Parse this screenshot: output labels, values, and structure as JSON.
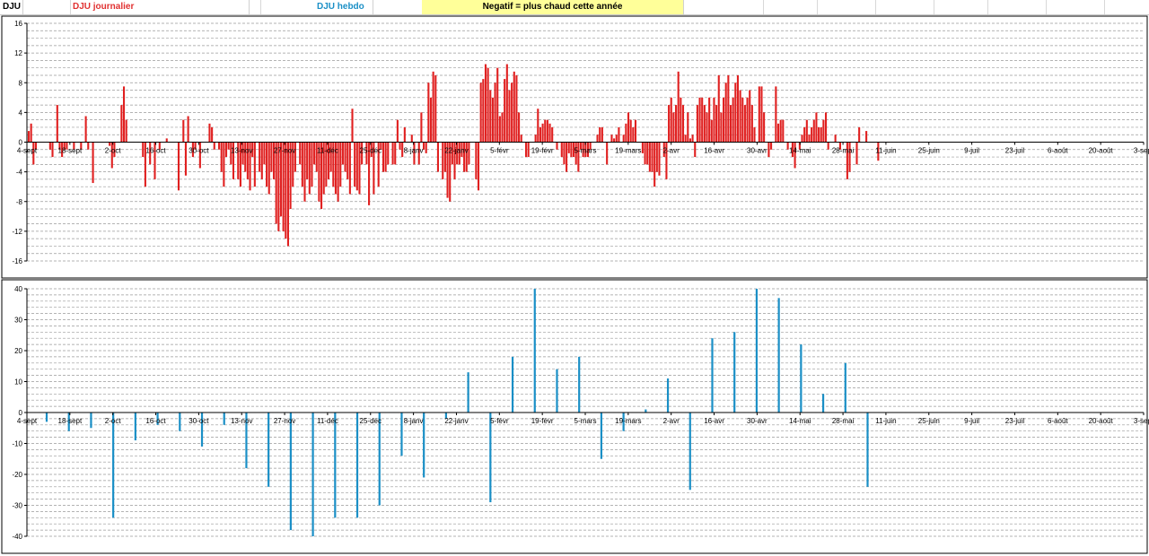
{
  "header": {
    "dju_label": "DJU",
    "daily_label": "DJU journalier",
    "weekly_label": "DJU hebdo",
    "note": "Negatif = plus chaud cette année"
  },
  "colors": {
    "daily": "#e02020",
    "weekly": "#1a8fc6"
  },
  "x_ticks": [
    "4-sept",
    "18-sept",
    "2-oct",
    "16-oct",
    "30-oct",
    "13-nov",
    "27-nov",
    "11-déc",
    "25-déc",
    "8-janv",
    "22-janv",
    "5-févr",
    "19-févr",
    "5-mars",
    "19-mars",
    "2-avr",
    "16-avr",
    "30-avr",
    "14-mai",
    "28-mai",
    "11-juin",
    "25-juin",
    "9-juil",
    "23-juil",
    "6-août",
    "20-août",
    "3-sept"
  ],
  "chart_data": [
    {
      "type": "bar",
      "title": "DJU journalier",
      "ylim": [
        -16,
        16
      ],
      "yticks": [
        16,
        12,
        8,
        4,
        0,
        -4,
        -8,
        -12,
        -16
      ],
      "grid": true,
      "x_start": "4-sept",
      "values": [
        1.5,
        2.5,
        -3,
        -1,
        0,
        0,
        0,
        0,
        0,
        -1,
        -2,
        0,
        5,
        -1,
        -2,
        -1,
        -1,
        0,
        0,
        -1,
        0,
        0,
        -1,
        0,
        3.5,
        -1,
        0,
        -5.5,
        0,
        0,
        0,
        0,
        0,
        0,
        -0.5,
        -3.5,
        -2,
        0,
        0,
        5,
        7.5,
        3,
        0,
        0,
        0,
        0,
        0,
        0,
        -2,
        -6,
        0,
        -3,
        0,
        -5,
        0,
        -1,
        0,
        0,
        0.5,
        0,
        0,
        0,
        0,
        -6.5,
        0,
        3,
        -4.5,
        3.5,
        0,
        -2,
        -1,
        0,
        -3.5,
        0,
        0,
        0,
        2.5,
        2,
        -1,
        0,
        -1,
        -4,
        -6,
        -2,
        -1,
        -3,
        -5,
        0,
        -5,
        -6,
        -3,
        -4,
        -5,
        -6.5,
        -2,
        -6,
        0,
        -4,
        -5,
        -3,
        -6,
        -7,
        -4,
        -5,
        -11,
        -12,
        -10,
        -12,
        -13,
        -14,
        -9,
        -6,
        -4,
        0,
        -3,
        -6,
        -8,
        -5,
        -7,
        -6,
        -3,
        -4,
        -8,
        -9,
        -7,
        -6,
        -5,
        -4,
        -6,
        -7,
        -8,
        -6,
        -3,
        -4,
        -5,
        -7,
        4.5,
        -6,
        -6.5,
        -7,
        -3,
        0,
        -3,
        -8.5,
        -2,
        -7,
        0,
        -6,
        -1,
        -4,
        -4,
        -3,
        0,
        -3,
        -3,
        3,
        -1,
        -2,
        2,
        0,
        0,
        1,
        -3,
        0,
        -3,
        4,
        -1,
        -1.5,
        8,
        6,
        9.5,
        9,
        -4,
        0,
        -5,
        -4,
        -7.5,
        -8,
        -3,
        -5,
        -3,
        -3,
        -2,
        -4,
        -4,
        -3,
        0,
        0,
        -5,
        -6.5,
        8,
        8.5,
        10.5,
        10,
        7,
        6,
        8,
        10,
        3.5,
        4,
        8.5,
        10.5,
        7,
        8,
        9.5,
        9,
        4,
        1,
        0,
        -2,
        -2,
        0,
        0,
        1,
        4.5,
        2,
        2.5,
        3,
        3,
        2.5,
        2,
        0,
        -1,
        0,
        -2,
        -3,
        -4,
        -1.5,
        -2,
        -2,
        -3,
        -4,
        -1,
        -2,
        -2,
        -2,
        -1,
        0,
        0,
        1,
        2,
        2,
        0,
        -3,
        0,
        1,
        0.5,
        1,
        2,
        0,
        1,
        2.5,
        4,
        3,
        2,
        3,
        0,
        0,
        -1.5,
        -3,
        -3,
        -4,
        -4,
        -6,
        -4,
        -4.5,
        0,
        -2,
        -5,
        5,
        6,
        4,
        5,
        9.5,
        6,
        5,
        1,
        4,
        0.5,
        1,
        -2,
        5,
        6,
        6,
        5,
        4,
        6,
        3,
        6,
        5,
        9,
        4,
        6,
        8,
        9,
        5,
        6,
        8,
        9,
        7,
        6,
        5,
        6,
        7,
        5,
        2,
        0,
        7.5,
        7.5,
        4,
        0,
        -2,
        -1,
        0,
        7.5,
        2.5,
        3,
        3,
        0,
        -1,
        0,
        -2,
        -3.5,
        0,
        -1,
        1,
        2,
        3,
        1,
        2,
        3,
        4,
        2,
        2,
        3,
        4,
        -1,
        0,
        0,
        1,
        0,
        -1,
        0,
        0,
        -5,
        -4,
        0,
        0,
        -3,
        2,
        0,
        0,
        1.5,
        0,
        0,
        0,
        0,
        -2.5,
        0
      ]
    },
    {
      "type": "bar",
      "title": "DJU hebdo",
      "ylim": [
        -40,
        40
      ],
      "yticks": [
        40,
        30,
        20,
        10,
        0,
        -10,
        -20,
        -30,
        -40
      ],
      "grid": true,
      "x_start": "4-sept",
      "values": [
        -3,
        -6,
        -5,
        -34,
        -9,
        -4,
        -6,
        -11,
        -4,
        -18,
        -24,
        -38,
        -40,
        -34,
        -34,
        -30,
        -14,
        -21,
        -2,
        13,
        -29,
        18,
        40,
        14,
        18,
        -15,
        -6,
        1,
        11,
        -25,
        24,
        26,
        40,
        37,
        22,
        6,
        16,
        -24
      ]
    }
  ]
}
